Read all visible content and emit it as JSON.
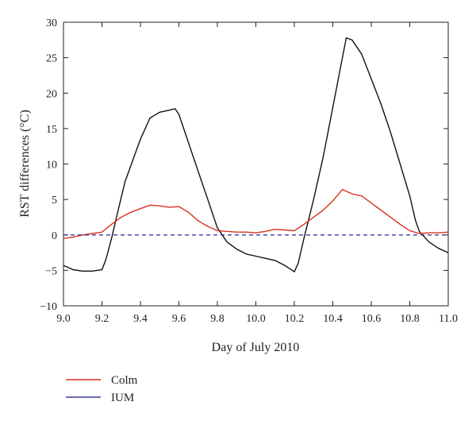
{
  "chart_data": {
    "type": "line",
    "xlabel": "Day of July 2010",
    "ylabel": "RST differences (°C)",
    "xlim": [
      9.0,
      11.0
    ],
    "ylim": [
      -10,
      30
    ],
    "x_ticks": [
      9.0,
      9.2,
      9.4,
      9.6,
      9.8,
      10.0,
      10.2,
      10.4,
      10.6,
      10.8,
      11.0
    ],
    "x_tick_labels": [
      "9.0",
      "9.2",
      "9.4",
      "9.6",
      "9.8",
      "10.0",
      "10.2",
      "10.4",
      "10.6",
      "10.8",
      "11.0"
    ],
    "y_ticks": [
      -10,
      -5,
      0,
      5,
      10,
      15,
      20,
      25,
      30
    ],
    "y_tick_labels": [
      "−10",
      "−5",
      "0",
      "5",
      "10",
      "15",
      "20",
      "25",
      "30"
    ],
    "grid": false,
    "legend_position": "bottom-left, below plot",
    "series": [
      {
        "name": "",
        "color": "#111111",
        "style": "solid",
        "x": [
          9.0,
          9.05,
          9.1,
          9.15,
          9.2,
          9.22,
          9.25,
          9.28,
          9.32,
          9.36,
          9.4,
          9.45,
          9.5,
          9.55,
          9.58,
          9.6,
          9.65,
          9.7,
          9.75,
          9.8,
          9.85,
          9.9,
          9.95,
          10.0,
          10.05,
          10.1,
          10.15,
          10.2,
          10.22,
          10.25,
          10.3,
          10.35,
          10.4,
          10.45,
          10.47,
          10.5,
          10.55,
          10.6,
          10.65,
          10.7,
          10.75,
          10.8,
          10.83,
          10.85,
          10.9,
          10.95,
          11.0
        ],
        "y": [
          -4.3,
          -4.9,
          -5.1,
          -5.1,
          -4.9,
          -3.5,
          -0.5,
          3.0,
          7.5,
          10.5,
          13.5,
          16.5,
          17.3,
          17.6,
          17.8,
          17.0,
          13.0,
          9.0,
          5.0,
          1.0,
          -1.0,
          -2.0,
          -2.7,
          -3.0,
          -3.3,
          -3.6,
          -4.3,
          -5.2,
          -4.0,
          -0.5,
          5.0,
          11.0,
          18.0,
          25.0,
          27.8,
          27.5,
          25.5,
          22.0,
          18.5,
          14.5,
          10.0,
          5.5,
          2.0,
          0.5,
          -1.0,
          -1.9,
          -2.5
        ]
      },
      {
        "name": "Colm",
        "color": "#d8321e",
        "style": "solid",
        "x": [
          9.0,
          9.05,
          9.1,
          9.15,
          9.2,
          9.25,
          9.3,
          9.35,
          9.4,
          9.45,
          9.5,
          9.55,
          9.6,
          9.65,
          9.7,
          9.75,
          9.8,
          9.85,
          9.9,
          9.95,
          10.0,
          10.05,
          10.1,
          10.15,
          10.2,
          10.25,
          10.3,
          10.35,
          10.4,
          10.45,
          10.5,
          10.55,
          10.6,
          10.65,
          10.7,
          10.75,
          10.8,
          10.85,
          10.9,
          10.95,
          11.0
        ],
        "y": [
          -0.5,
          -0.3,
          0.0,
          0.2,
          0.4,
          1.5,
          2.5,
          3.2,
          3.7,
          4.2,
          4.1,
          3.9,
          4.0,
          3.2,
          2.0,
          1.2,
          0.6,
          0.5,
          0.4,
          0.4,
          0.3,
          0.5,
          0.8,
          0.7,
          0.6,
          1.5,
          2.5,
          3.5,
          4.8,
          6.4,
          5.8,
          5.5,
          4.5,
          3.5,
          2.5,
          1.5,
          0.6,
          0.2,
          0.3,
          0.3,
          0.4
        ]
      },
      {
        "name": "IUM",
        "color": "#3b3b9a",
        "style": "dashed",
        "x": [
          9.0,
          11.0
        ],
        "y": [
          0.0,
          0.0
        ]
      }
    ],
    "legend": [
      {
        "name": "Colm",
        "color": "#d8321e"
      },
      {
        "name": "IUM",
        "color": "#3b3b9a"
      }
    ]
  }
}
